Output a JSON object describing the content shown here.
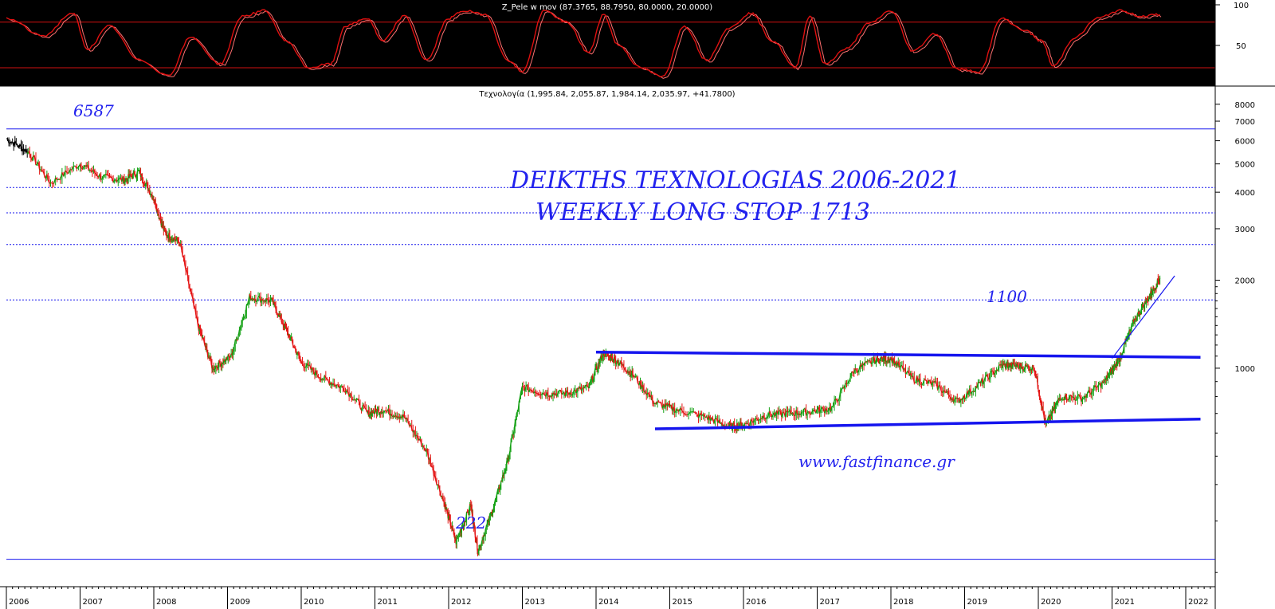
{
  "oscillator": {
    "title": "Z_Pele w mov (87.3765, 88.7950, 80.0000, 20.0000)",
    "levels": [
      80,
      20
    ],
    "axis_ticks": [
      "100",
      "50"
    ],
    "colors": {
      "background": "#000000",
      "line": "#e01010",
      "level": "#d01010",
      "text": "#ffffff"
    }
  },
  "price": {
    "title": "Τεχνολογία (1,995.84, 2,055.87, 1,984.14, 2,035.97, +41.7800)",
    "axis_ticks": [
      "8000",
      "7000",
      "6000",
      "5000",
      "4000",
      "3000",
      "2000",
      "1000"
    ],
    "colors": {
      "up": "#12a012",
      "down": "#e41414",
      "early": "#000000",
      "lines": "#1515ee"
    }
  },
  "annotations": {
    "title_line1": "DEIKTHS TEXNOLOGIAS 2006-2021",
    "title_line2": "WEEKLY LONG STOP  1713",
    "label_top": "6587",
    "label_bottom": "222",
    "label_resistance": "1100",
    "website": "www.fastfinance.gr"
  },
  "chart_data": {
    "type": "line",
    "scale": "log",
    "x": [
      2006.0,
      2006.3,
      2006.6,
      2007.0,
      2007.3,
      2007.6,
      2007.8,
      2008.0,
      2008.15,
      2008.35,
      2008.6,
      2008.8,
      2009.05,
      2009.3,
      2009.6,
      2009.8,
      2010.0,
      2010.3,
      2010.6,
      2010.9,
      2011.1,
      2011.4,
      2011.7,
      2011.95,
      2012.1,
      2012.3,
      2012.4,
      2012.6,
      2012.8,
      2013.0,
      2013.3,
      2013.6,
      2013.9,
      2014.1,
      2014.3,
      2014.5,
      2014.8,
      2015.1,
      2015.5,
      2015.8,
      2016.0,
      2016.3,
      2016.6,
      2016.9,
      2017.2,
      2017.5,
      2017.8,
      2018.0,
      2018.3,
      2018.6,
      2018.9,
      2019.2,
      2019.5,
      2019.7,
      2019.95,
      2020.1,
      2020.3,
      2020.6,
      2020.9,
      2021.1,
      2021.3,
      2021.5,
      2021.65
    ],
    "y": [
      6100,
      5500,
      4300,
      5000,
      4500,
      4400,
      4700,
      3800,
      2900,
      2700,
      1400,
      1000,
      1100,
      1750,
      1700,
      1350,
      1050,
      920,
      850,
      700,
      720,
      680,
      520,
      340,
      255,
      340,
      236,
      330,
      480,
      860,
      820,
      820,
      860,
      1130,
      1050,
      950,
      760,
      720,
      680,
      630,
      640,
      690,
      700,
      710,
      730,
      980,
      1070,
      1080,
      920,
      880,
      770,
      880,
      1020,
      1020,
      1000,
      640,
      800,
      790,
      900,
      1080,
      1450,
      1750,
      2036
    ],
    "ylim": [
      180,
      9000
    ],
    "xlim": [
      2006.0,
      2022.4
    ],
    "x_ticks": [
      2006,
      2007,
      2008,
      2009,
      2010,
      2011,
      2012,
      2013,
      2014,
      2015,
      2016,
      2017,
      2018,
      2019,
      2020,
      2021,
      2022
    ],
    "horizontal_levels": [
      6587,
      4150,
      3400,
      2650,
      1713,
      222
    ],
    "trendlines": [
      {
        "from": [
          2014.0,
          1135
        ],
        "to": [
          2022.2,
          1090
        ]
      },
      {
        "from": [
          2014.8,
          620
        ],
        "to": [
          2022.2,
          670
        ]
      },
      {
        "from": [
          2021.0,
          1080
        ],
        "to": [
          2021.85,
          2070
        ]
      }
    ],
    "oscillator_x": [
      2006.0,
      2006.5,
      2006.9,
      2007.1,
      2007.4,
      2007.8,
      2008.2,
      2008.5,
      2008.9,
      2009.2,
      2009.5,
      2009.8,
      2010.1,
      2010.4,
      2010.6,
      2010.9,
      2011.1,
      2011.4,
      2011.7,
      2012.0,
      2012.2,
      2012.5,
      2012.8,
      2013.0,
      2013.3,
      2013.6,
      2013.9,
      2014.1,
      2014.3,
      2014.6,
      2014.9,
      2015.2,
      2015.5,
      2015.8,
      2016.1,
      2016.4,
      2016.7,
      2016.9,
      2017.1,
      2017.4,
      2017.7,
      2018.0,
      2018.3,
      2018.6,
      2018.9,
      2019.2,
      2019.5,
      2019.8,
      2020.05,
      2020.2,
      2020.5,
      2020.8,
      2021.1,
      2021.4,
      2021.65
    ],
    "oscillator_y": [
      85,
      62,
      92,
      45,
      75,
      30,
      10,
      60,
      25,
      88,
      95,
      55,
      20,
      25,
      75,
      85,
      55,
      88,
      30,
      85,
      95,
      90,
      30,
      15,
      95,
      80,
      40,
      90,
      50,
      20,
      8,
      75,
      30,
      72,
      92,
      55,
      20,
      88,
      25,
      45,
      78,
      95,
      42,
      65,
      18,
      15,
      85,
      70,
      55,
      22,
      60,
      85,
      95,
      88,
      90
    ],
    "oscillator_ylim": [
      0,
      105
    ]
  }
}
